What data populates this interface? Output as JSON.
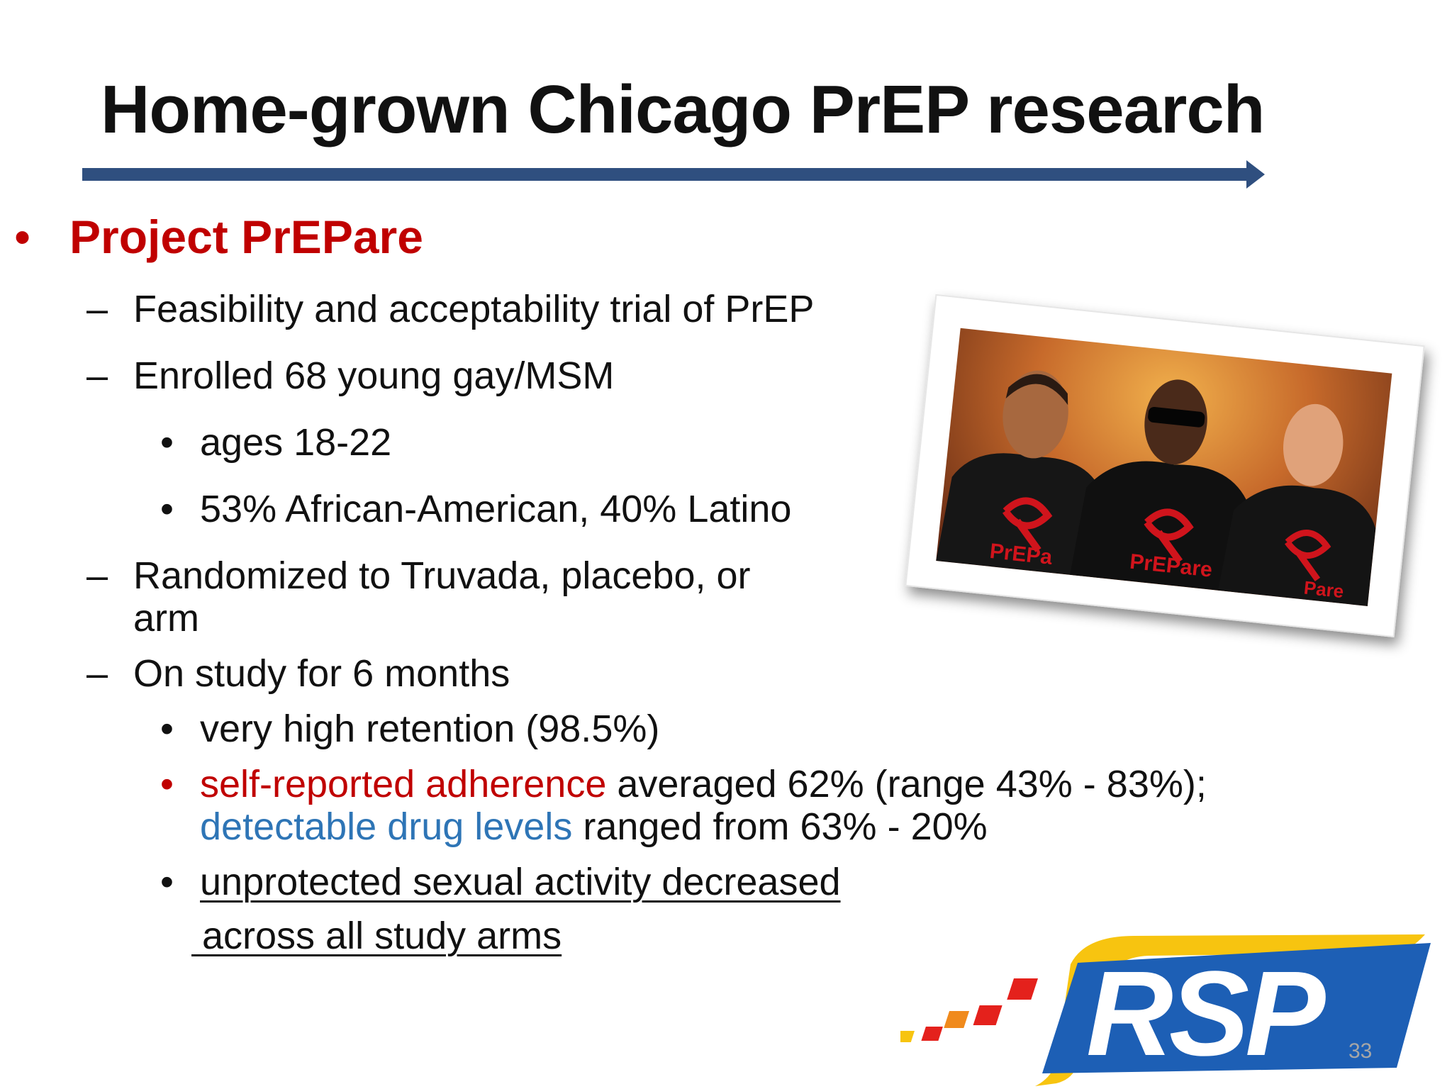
{
  "slide": {
    "title": "Home-grown Chicago PrEP research",
    "page_number": "33"
  },
  "content": {
    "main_bullet": "Project PrEPare",
    "bullet_symbol": "•",
    "dash_symbol": "–",
    "items": [
      {
        "text": "Feasibility and acceptability trial of PrEP"
      },
      {
        "text": "Enrolled 68 young gay/MSM"
      },
      {
        "text": "ages 18-22"
      },
      {
        "text": "53% African-American, 40% Latino"
      },
      {
        "line1": "Randomized to Truvada, placebo, or",
        "line2": "arm"
      },
      {
        "text": "On study for 6 months"
      },
      {
        "text": "very high retention (98.5%)"
      },
      {
        "red": "self-reported adherence",
        "after_red": " averaged 62% (range 43% - 83%);",
        "blue": "detectable drug levels",
        "after_blue": " ranged from 63% - 20%"
      },
      {
        "line1": "unprotected sexual activity decreased",
        "line2": " across all study arms"
      }
    ]
  },
  "photo": {
    "shirt_text": "PrEPare",
    "shirt_text_partial_left": "PrEPa",
    "shirt_text_partial_right": "Pare"
  },
  "logo": {
    "text": "RSP",
    "colors": {
      "blue": "#1d5fb5",
      "yellow": "#f7c410",
      "red": "#e4211c",
      "orange": "#f08a1c"
    }
  },
  "colors": {
    "accent_red": "#c00000",
    "accent_blue": "#2e75b6",
    "rule": "#2f4f7f"
  }
}
